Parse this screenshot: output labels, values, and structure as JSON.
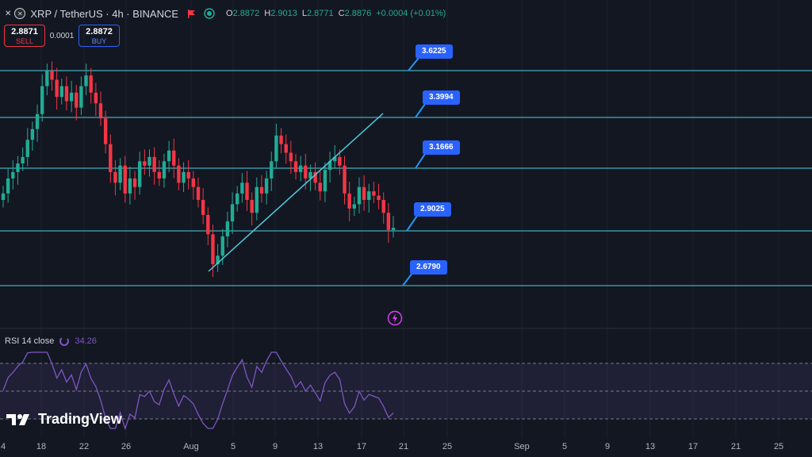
{
  "header": {
    "symbol": "XRP / TetherUS · 4h · BINANCE",
    "ohlc": [
      {
        "k": "O",
        "v": "2.8872"
      },
      {
        "k": "H",
        "v": "2.9013"
      },
      {
        "k": "L",
        "v": "2.8771"
      },
      {
        "k": "C",
        "v": "2.8876"
      }
    ],
    "change": "+0.0004 (+0.01%)",
    "icons": [
      "collapse-icon",
      "xrp-coin-icon",
      "flag-icon",
      "eye-icon"
    ]
  },
  "trade": {
    "sell_price": "2.8871",
    "sell_label": "SELL",
    "spread": "0.0001",
    "buy_price": "2.8872",
    "buy_label": "BUY"
  },
  "levels": [
    {
      "value": "3.6225",
      "color": "#2196f3"
    },
    {
      "value": "3.3994",
      "color": "#2196f3"
    },
    {
      "value": "3.1666",
      "color": "#2196f3"
    },
    {
      "value": "2.9025",
      "color": "#2196f3"
    },
    {
      "value": "2.6790",
      "color": "#2196f3"
    }
  ],
  "rsi": {
    "label": "RSI 14 close",
    "value": "34.26",
    "color": "#7e57c2"
  },
  "x_axis": [
    "4",
    "18",
    "22",
    "26",
    "Aug",
    "5",
    "9",
    "13",
    "17",
    "21",
    "25",
    "Sep",
    "5",
    "9",
    "13",
    "17",
    "21",
    "25"
  ],
  "logo": "TradingView",
  "colors": {
    "up": "#22ab94",
    "down": "#f23645",
    "line": "#4dd0e1",
    "bg": "#131722"
  },
  "chart_data": {
    "type": "candlestick",
    "symbol": "XRPUSDT",
    "timeframe": "4h",
    "closes": [
      3.05,
      3.12,
      3.15,
      3.19,
      3.22,
      3.3,
      3.35,
      3.42,
      3.55,
      3.62,
      3.58,
      3.5,
      3.55,
      3.48,
      3.52,
      3.45,
      3.55,
      3.6,
      3.52,
      3.47,
      3.4,
      3.28,
      3.15,
      3.1,
      3.18,
      3.05,
      3.12,
      3.08,
      3.2,
      3.18,
      3.22,
      3.15,
      3.12,
      3.2,
      3.25,
      3.18,
      3.1,
      3.15,
      3.12,
      3.08,
      3.02,
      2.95,
      2.86,
      2.72,
      2.76,
      2.85,
      2.92,
      3.0,
      3.05,
      3.1,
      3.02,
      2.96,
      3.08,
      3.05,
      3.12,
      3.2,
      3.32,
      3.28,
      3.24,
      3.2,
      3.15,
      3.18,
      3.12,
      3.15,
      3.1,
      3.06,
      3.16,
      3.2,
      3.22,
      3.18,
      3.05,
      2.98,
      3.0,
      3.08,
      3.02,
      3.06,
      3.04,
      3.02,
      2.96,
      2.88,
      2.89
    ],
    "lows_highs_source": "estimated from candles",
    "rsi_last": 34.26
  }
}
